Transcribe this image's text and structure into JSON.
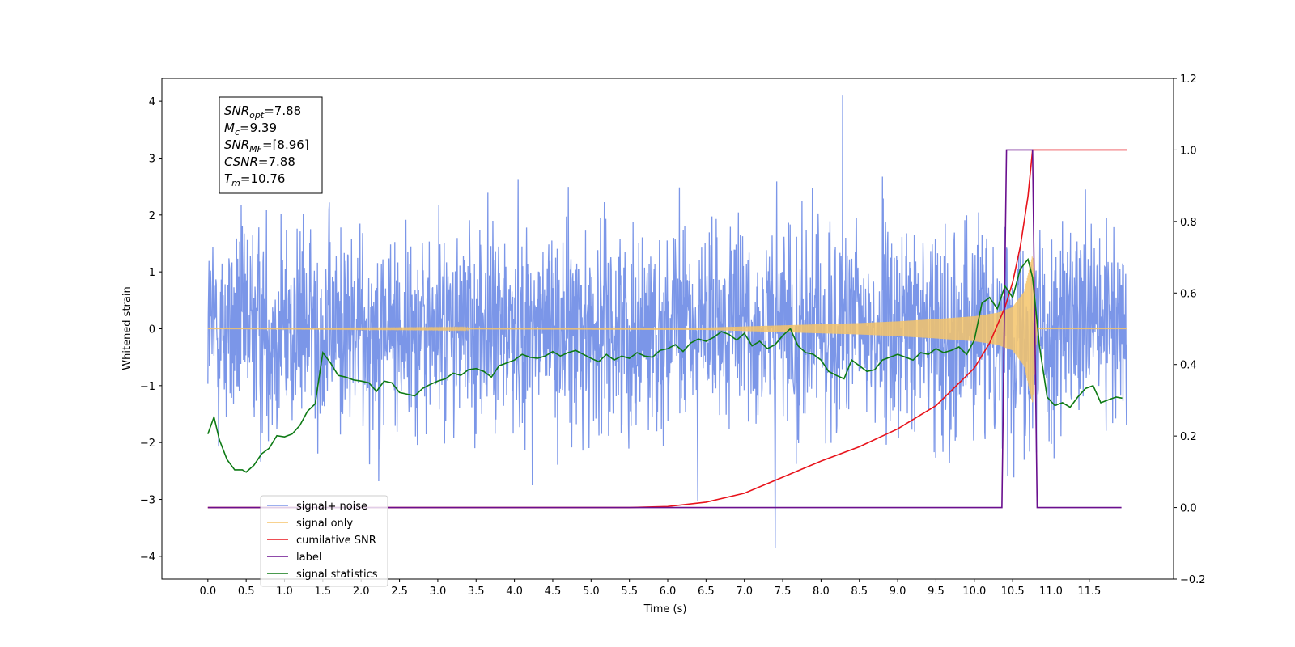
{
  "chart_data": {
    "type": "line",
    "xlabel": "Time (s)",
    "ylabel": "Whitened strain",
    "xlim": [
      -0.6,
      12.6
    ],
    "ylim": [
      -4.4,
      4.4
    ],
    "ylim_right": [
      -0.2,
      1.2
    ],
    "x_ticks": [
      0.0,
      0.5,
      1.0,
      1.5,
      2.0,
      2.5,
      3.0,
      3.5,
      4.0,
      4.5,
      5.0,
      5.5,
      6.0,
      6.5,
      7.0,
      7.5,
      8.0,
      8.5,
      9.0,
      9.5,
      10.0,
      10.5,
      11.0,
      11.5
    ],
    "x_tick_labels": [
      "0.0",
      "0.5",
      "1.0",
      "1.5",
      "2.0",
      "2.5",
      "3.0",
      "3.5",
      "4.0",
      "4.5",
      "5.0",
      "5.5",
      "6.0",
      "6.5",
      "7.0",
      "7.5",
      "8.0",
      "8.5",
      "9.0",
      "9.5",
      "10.0",
      "10.5",
      "11.0",
      "11.5"
    ],
    "y_ticks": [
      -4,
      -3,
      -2,
      -1,
      0,
      1,
      2,
      3,
      4
    ],
    "y_tick_labels": [
      "−4",
      "−3",
      "−2",
      "−1",
      "0",
      "1",
      "2",
      "3",
      "4"
    ],
    "y_ticks_right": [
      -0.2,
      0.0,
      0.2,
      0.4,
      0.6,
      0.8,
      1.0,
      1.2
    ],
    "y_tick_labels_right": [
      "−0.2",
      "0.0",
      "0.2",
      "0.4",
      "0.6",
      "0.8",
      "1.0",
      "1.2"
    ],
    "legend_position": "lower-left",
    "grid": false,
    "annotation": {
      "lines": [
        {
          "base": "SNR",
          "sub": "opt",
          "value": "=7.88"
        },
        {
          "base": "M",
          "sub": "c",
          "value": "=9.39"
        },
        {
          "base": "SNR",
          "sub": "MF",
          "value": "=[8.96]"
        },
        {
          "base": "CSNR",
          "sub": "",
          "value": "=7.88"
        },
        {
          "base": "T",
          "sub": "m",
          "value": "=10.76"
        }
      ]
    },
    "series": [
      {
        "name": "signal+ noise",
        "color": "#7b96e8",
        "axis": "left",
        "kind": "noise",
        "x_range": [
          0.0,
          11.99
        ],
        "typical_band": [
          -1.9,
          1.9
        ],
        "max": 4.1,
        "min": -3.85
      },
      {
        "name": "signal only",
        "color": "#f5c46a",
        "axis": "left",
        "kind": "chirp",
        "x_range": [
          0.0,
          11.99
        ],
        "merger_time": 10.76,
        "envelope": {
          "x": [
            0.0,
            6.5,
            7.5,
            8.5,
            9.0,
            9.5,
            10.0,
            10.3,
            10.5,
            10.65,
            10.76,
            10.82,
            11.99
          ],
          "amp": [
            0.0,
            0.02,
            0.06,
            0.1,
            0.13,
            0.17,
            0.22,
            0.28,
            0.38,
            0.65,
            1.3,
            0.0,
            0.0
          ]
        }
      },
      {
        "name": "cumilative SNR",
        "color": "#e8131b",
        "axis": "right",
        "x": [
          0.0,
          5.5,
          6.0,
          6.5,
          7.0,
          7.5,
          8.0,
          8.5,
          9.0,
          9.5,
          10.0,
          10.2,
          10.4,
          10.5,
          10.6,
          10.7,
          10.76,
          11.99
        ],
        "y": [
          0.0,
          0.0,
          0.003,
          0.015,
          0.04,
          0.085,
          0.13,
          0.17,
          0.22,
          0.285,
          0.39,
          0.46,
          0.56,
          0.63,
          0.73,
          0.87,
          1.0,
          1.0
        ]
      },
      {
        "name": "label",
        "color": "#6a0f8e",
        "axis": "right",
        "x": [
          0.0,
          10.36,
          10.42,
          10.76,
          10.82,
          11.92
        ],
        "y": [
          0.0,
          0.0,
          1.0,
          1.0,
          0.0,
          0.0
        ]
      },
      {
        "name": "signal statistics",
        "color": "#0d7a14",
        "axis": "left",
        "x": [
          0.0,
          0.08,
          0.15,
          0.25,
          0.35,
          0.45,
          0.5,
          0.6,
          0.7,
          0.8,
          0.9,
          1.0,
          1.1,
          1.2,
          1.3,
          1.4,
          1.5,
          1.6,
          1.7,
          1.8,
          1.9,
          2.0,
          2.1,
          2.2,
          2.3,
          2.4,
          2.5,
          2.6,
          2.7,
          2.8,
          2.9,
          3.0,
          3.1,
          3.2,
          3.3,
          3.4,
          3.5,
          3.6,
          3.7,
          3.8,
          3.9,
          4.0,
          4.1,
          4.2,
          4.3,
          4.4,
          4.5,
          4.6,
          4.7,
          4.8,
          4.9,
          5.0,
          5.1,
          5.2,
          5.3,
          5.4,
          5.5,
          5.6,
          5.7,
          5.8,
          5.9,
          6.0,
          6.1,
          6.2,
          6.3,
          6.4,
          6.5,
          6.6,
          6.7,
          6.8,
          6.9,
          7.0,
          7.1,
          7.2,
          7.3,
          7.4,
          7.5,
          7.6,
          7.7,
          7.8,
          7.9,
          8.0,
          8.1,
          8.2,
          8.3,
          8.4,
          8.5,
          8.6,
          8.7,
          8.8,
          8.9,
          9.0,
          9.1,
          9.2,
          9.3,
          9.4,
          9.5,
          9.6,
          9.7,
          9.8,
          9.9,
          10.0,
          10.1,
          10.2,
          10.3,
          10.4,
          10.5,
          10.6,
          10.7,
          10.76,
          10.85,
          10.95,
          11.05,
          11.15,
          11.25,
          11.35,
          11.45,
          11.55,
          11.65,
          11.75,
          11.85,
          11.93
        ],
        "y": [
          -1.85,
          -1.55,
          -1.95,
          -2.3,
          -2.48,
          -2.48,
          -2.52,
          -2.4,
          -2.2,
          -2.1,
          -1.88,
          -1.9,
          -1.85,
          -1.7,
          -1.45,
          -1.32,
          -0.42,
          -0.6,
          -0.82,
          -0.85,
          -0.9,
          -0.92,
          -0.95,
          -1.1,
          -0.92,
          -0.95,
          -1.12,
          -1.15,
          -1.18,
          -1.05,
          -0.98,
          -0.92,
          -0.88,
          -0.78,
          -0.82,
          -0.72,
          -0.7,
          -0.75,
          -0.85,
          -0.65,
          -0.6,
          -0.55,
          -0.45,
          -0.5,
          -0.52,
          -0.48,
          -0.4,
          -0.48,
          -0.42,
          -0.38,
          -0.45,
          -0.52,
          -0.58,
          -0.45,
          -0.55,
          -0.48,
          -0.52,
          -0.42,
          -0.48,
          -0.5,
          -0.38,
          -0.35,
          -0.28,
          -0.4,
          -0.25,
          -0.18,
          -0.22,
          -0.15,
          -0.05,
          -0.1,
          -0.2,
          -0.08,
          -0.3,
          -0.22,
          -0.35,
          -0.28,
          -0.12,
          0.0,
          -0.3,
          -0.42,
          -0.45,
          -0.55,
          -0.75,
          -0.82,
          -0.88,
          -0.55,
          -0.65,
          -0.75,
          -0.72,
          -0.55,
          -0.5,
          -0.45,
          -0.5,
          -0.55,
          -0.42,
          -0.45,
          -0.35,
          -0.42,
          -0.38,
          -0.32,
          -0.45,
          -0.2,
          0.45,
          0.55,
          0.35,
          0.75,
          0.55,
          1.05,
          1.22,
          0.9,
          -0.3,
          -1.2,
          -1.35,
          -1.3,
          -1.38,
          -1.2,
          -1.05,
          -1.0,
          -1.3,
          -1.25,
          -1.2,
          -1.22
        ]
      }
    ]
  }
}
